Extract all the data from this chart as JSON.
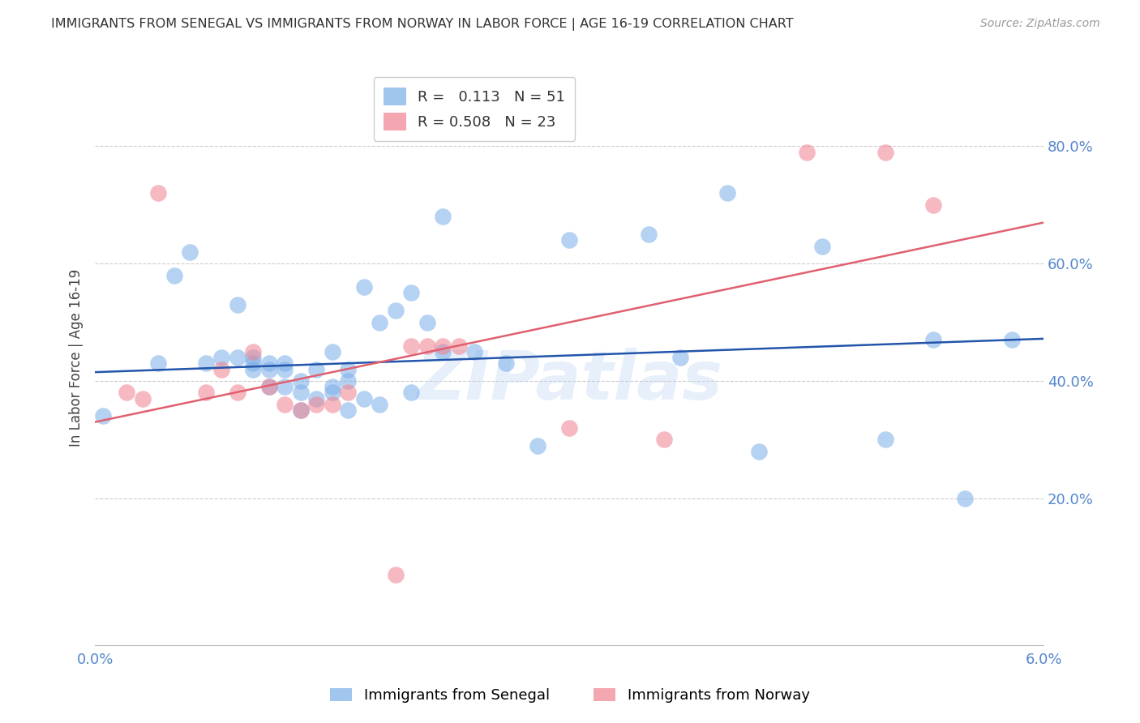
{
  "title": "IMMIGRANTS FROM SENEGAL VS IMMIGRANTS FROM NORWAY IN LABOR FORCE | AGE 16-19 CORRELATION CHART",
  "source": "Source: ZipAtlas.com",
  "ylabel": "In Labor Force | Age 16-19",
  "ylabel_right_ticks": [
    "80.0%",
    "60.0%",
    "40.0%",
    "20.0%"
  ],
  "ylabel_right_vals": [
    0.8,
    0.6,
    0.4,
    0.2
  ],
  "xlim": [
    0.0,
    0.06
  ],
  "ylim": [
    -0.05,
    0.93
  ],
  "watermark": "ZIPatlas",
  "legend_blue_r": "0.113",
  "legend_blue_n": "51",
  "legend_pink_r": "0.508",
  "legend_pink_n": "23",
  "senegal_color": "#7aaee8",
  "norway_color": "#f08090",
  "senegal_label": "Immigrants from Senegal",
  "norway_label": "Immigrants from Norway",
  "blue_line_color": "#2255aa",
  "pink_line_color": "#e06070",
  "grid_color": "#cccccc",
  "title_color": "#333333",
  "tick_color": "#5588cc",
  "blue_line_x0": 0.0,
  "blue_line_y0": 0.415,
  "blue_line_x1": 0.06,
  "blue_line_y1": 0.472,
  "pink_line_x0": 0.0,
  "pink_line_y0": 0.33,
  "pink_line_x1": 0.06,
  "pink_line_y1": 0.67,
  "senegal_x": [
    0.0005,
    0.004,
    0.005,
    0.006,
    0.007,
    0.008,
    0.009,
    0.009,
    0.01,
    0.01,
    0.01,
    0.011,
    0.011,
    0.011,
    0.012,
    0.012,
    0.012,
    0.013,
    0.013,
    0.013,
    0.014,
    0.014,
    0.015,
    0.015,
    0.015,
    0.016,
    0.016,
    0.016,
    0.017,
    0.017,
    0.018,
    0.018,
    0.019,
    0.02,
    0.02,
    0.021,
    0.022,
    0.022,
    0.024,
    0.026,
    0.028,
    0.03,
    0.035,
    0.037,
    0.04,
    0.042,
    0.046,
    0.05,
    0.053,
    0.055,
    0.058
  ],
  "senegal_y": [
    0.34,
    0.43,
    0.58,
    0.62,
    0.43,
    0.44,
    0.53,
    0.44,
    0.42,
    0.43,
    0.44,
    0.39,
    0.42,
    0.43,
    0.39,
    0.42,
    0.43,
    0.35,
    0.38,
    0.4,
    0.37,
    0.42,
    0.38,
    0.39,
    0.45,
    0.35,
    0.4,
    0.42,
    0.37,
    0.56,
    0.5,
    0.36,
    0.52,
    0.38,
    0.55,
    0.5,
    0.45,
    0.68,
    0.45,
    0.43,
    0.29,
    0.64,
    0.65,
    0.44,
    0.72,
    0.28,
    0.63,
    0.3,
    0.47,
    0.2,
    0.47
  ],
  "norway_x": [
    0.002,
    0.003,
    0.004,
    0.007,
    0.008,
    0.009,
    0.01,
    0.011,
    0.012,
    0.013,
    0.014,
    0.015,
    0.016,
    0.019,
    0.02,
    0.021,
    0.022,
    0.023,
    0.03,
    0.036,
    0.045,
    0.05,
    0.053
  ],
  "norway_y": [
    0.38,
    0.37,
    0.72,
    0.38,
    0.42,
    0.38,
    0.45,
    0.39,
    0.36,
    0.35,
    0.36,
    0.36,
    0.38,
    0.07,
    0.46,
    0.46,
    0.46,
    0.46,
    0.32,
    0.3,
    0.79,
    0.79,
    0.7
  ]
}
